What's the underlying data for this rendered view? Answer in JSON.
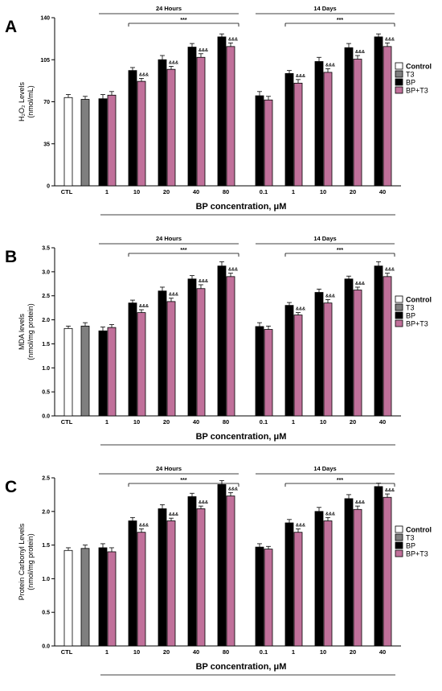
{
  "legend": {
    "labels": [
      "Control",
      "T3",
      "BP",
      "BP+T3"
    ],
    "colors": [
      "#ffffff",
      "#7f7f7f",
      "#000000",
      "#c0709a"
    ]
  },
  "chart_data": [
    {
      "panel_label": "A",
      "type": "bar",
      "ylabel_lines": [
        "H₂O₂ Levels",
        "(nmol/mL)"
      ],
      "ylim": [
        0,
        140
      ],
      "yticks": [
        0,
        35,
        70,
        105,
        140
      ],
      "group_titles": [
        "24 Hours",
        "14 Days"
      ],
      "significance_label": "***",
      "annotation_label": "&&&",
      "xlabel": "BP concentration, μM",
      "controls": [
        {
          "name": "Control",
          "category": "CTL",
          "value": 73.5,
          "err": 2.5
        },
        {
          "name": "T3",
          "category": "",
          "value": 72,
          "err": 2.5
        }
      ],
      "series": [
        {
          "name": "BP",
          "group": "24 Hours",
          "categories": [
            "1",
            "10",
            "20",
            "40",
            "80"
          ],
          "values": [
            72.5,
            96,
            105,
            115.5,
            124
          ],
          "err": [
            3.5,
            2.5,
            3.5,
            3,
            2.5
          ]
        },
        {
          "name": "BP+T3",
          "group": "24 Hours",
          "categories": [
            "1",
            "10",
            "20",
            "40",
            "80"
          ],
          "values": [
            75.5,
            87,
            97,
            107,
            116
          ],
          "err": [
            3,
            2.5,
            2.5,
            3,
            3
          ]
        },
        {
          "name": "BP",
          "group": "14 Days",
          "categories": [
            "0.1",
            "1",
            "10",
            "20",
            "40"
          ],
          "values": [
            75,
            93.5,
            103.5,
            115,
            124
          ],
          "err": [
            3.5,
            2.5,
            3.5,
            3.5,
            2.5
          ]
        },
        {
          "name": "BP+T3",
          "group": "14 Days",
          "categories": [
            "0.1",
            "1",
            "10",
            "20",
            "40"
          ],
          "values": [
            71.5,
            85.5,
            94.5,
            105.5,
            116
          ],
          "err": [
            3,
            3,
            3,
            3,
            3
          ]
        }
      ]
    },
    {
      "panel_label": "B",
      "type": "bar",
      "ylabel_lines": [
        "MDA levels",
        "(nmol/mg protein)"
      ],
      "ylim": [
        0,
        3.5
      ],
      "yticks": [
        0,
        0.5,
        1.0,
        1.5,
        2.0,
        2.5,
        3.0,
        3.5
      ],
      "group_titles": [
        "24 Hours",
        "14 Days"
      ],
      "significance_label": "***",
      "annotation_label": "&&&",
      "xlabel": "BP concentration, μM",
      "controls": [
        {
          "name": "Control",
          "category": "CTL",
          "value": 1.82,
          "err": 0.05
        },
        {
          "name": "T3",
          "category": "",
          "value": 1.87,
          "err": 0.07
        }
      ],
      "series": [
        {
          "name": "BP",
          "group": "24 Hours",
          "categories": [
            "1",
            "10",
            "20",
            "40",
            "80"
          ],
          "values": [
            1.77,
            2.35,
            2.6,
            2.85,
            3.12
          ],
          "err": [
            0.08,
            0.06,
            0.08,
            0.07,
            0.09
          ]
        },
        {
          "name": "BP+T3",
          "group": "24 Hours",
          "categories": [
            "1",
            "10",
            "20",
            "40",
            "80"
          ],
          "values": [
            1.84,
            2.15,
            2.38,
            2.65,
            2.9
          ],
          "err": [
            0.06,
            0.06,
            0.07,
            0.08,
            0.07
          ]
        },
        {
          "name": "BP",
          "group": "14 Days",
          "categories": [
            "0.1",
            "1",
            "10",
            "20",
            "40"
          ],
          "values": [
            1.86,
            2.3,
            2.57,
            2.85,
            3.12
          ],
          "err": [
            0.08,
            0.06,
            0.07,
            0.06,
            0.09
          ]
        },
        {
          "name": "BP+T3",
          "group": "14 Days",
          "categories": [
            "0.1",
            "1",
            "10",
            "20",
            "40"
          ],
          "values": [
            1.8,
            2.1,
            2.35,
            2.62,
            2.9
          ],
          "err": [
            0.07,
            0.05,
            0.07,
            0.06,
            0.07
          ]
        }
      ]
    },
    {
      "panel_label": "C",
      "type": "bar",
      "ylabel_lines": [
        "Protein Carbonyl Levels",
        "(nmol/mg protein)"
      ],
      "ylim": [
        0,
        2.5
      ],
      "yticks": [
        0,
        0.5,
        1.0,
        1.5,
        2.0,
        2.5
      ],
      "group_titles": [
        "24 Hours",
        "14 Days"
      ],
      "significance_label": "***",
      "annotation_label": "&&&",
      "xlabel": "BP concentration, μM",
      "controls": [
        {
          "name": "Control",
          "category": "CTL",
          "value": 1.42,
          "err": 0.04
        },
        {
          "name": "T3",
          "category": "",
          "value": 1.45,
          "err": 0.05
        }
      ],
      "series": [
        {
          "name": "BP",
          "group": "24 Hours",
          "categories": [
            "1",
            "10",
            "20",
            "40",
            "80"
          ],
          "values": [
            1.46,
            1.86,
            2.04,
            2.22,
            2.4
          ],
          "err": [
            0.06,
            0.05,
            0.06,
            0.05,
            0.06
          ]
        },
        {
          "name": "BP+T3",
          "group": "24 Hours",
          "categories": [
            "1",
            "10",
            "20",
            "40",
            "80"
          ],
          "values": [
            1.4,
            1.69,
            1.86,
            2.04,
            2.23
          ],
          "err": [
            0.06,
            0.05,
            0.04,
            0.04,
            0.05
          ]
        },
        {
          "name": "BP",
          "group": "14 Days",
          "categories": [
            "0.1",
            "1",
            "10",
            "20",
            "40"
          ],
          "values": [
            1.47,
            1.83,
            2.0,
            2.19,
            2.37
          ],
          "err": [
            0.05,
            0.05,
            0.06,
            0.06,
            0.05
          ]
        },
        {
          "name": "BP+T3",
          "group": "14 Days",
          "categories": [
            "0.1",
            "1",
            "10",
            "20",
            "40"
          ],
          "values": [
            1.44,
            1.69,
            1.86,
            2.03,
            2.21
          ],
          "err": [
            0.04,
            0.05,
            0.05,
            0.05,
            0.05
          ]
        }
      ]
    }
  ]
}
